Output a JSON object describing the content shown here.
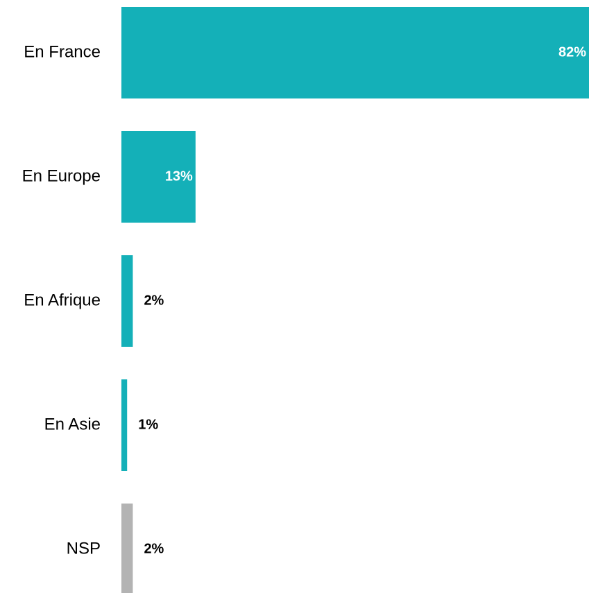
{
  "chart_data": {
    "type": "bar",
    "orientation": "horizontal",
    "categories": [
      "En France",
      "En Europe",
      "En Afrique",
      "En Asie",
      "NSP"
    ],
    "values": [
      82,
      13,
      2,
      1,
      2
    ],
    "value_labels": [
      "82%",
      "13%",
      "2%",
      "1%",
      "2%"
    ],
    "colors": [
      "#14b0b8",
      "#14b0b8",
      "#14b0b8",
      "#14b0b8",
      "#b3b3b3"
    ]
  }
}
